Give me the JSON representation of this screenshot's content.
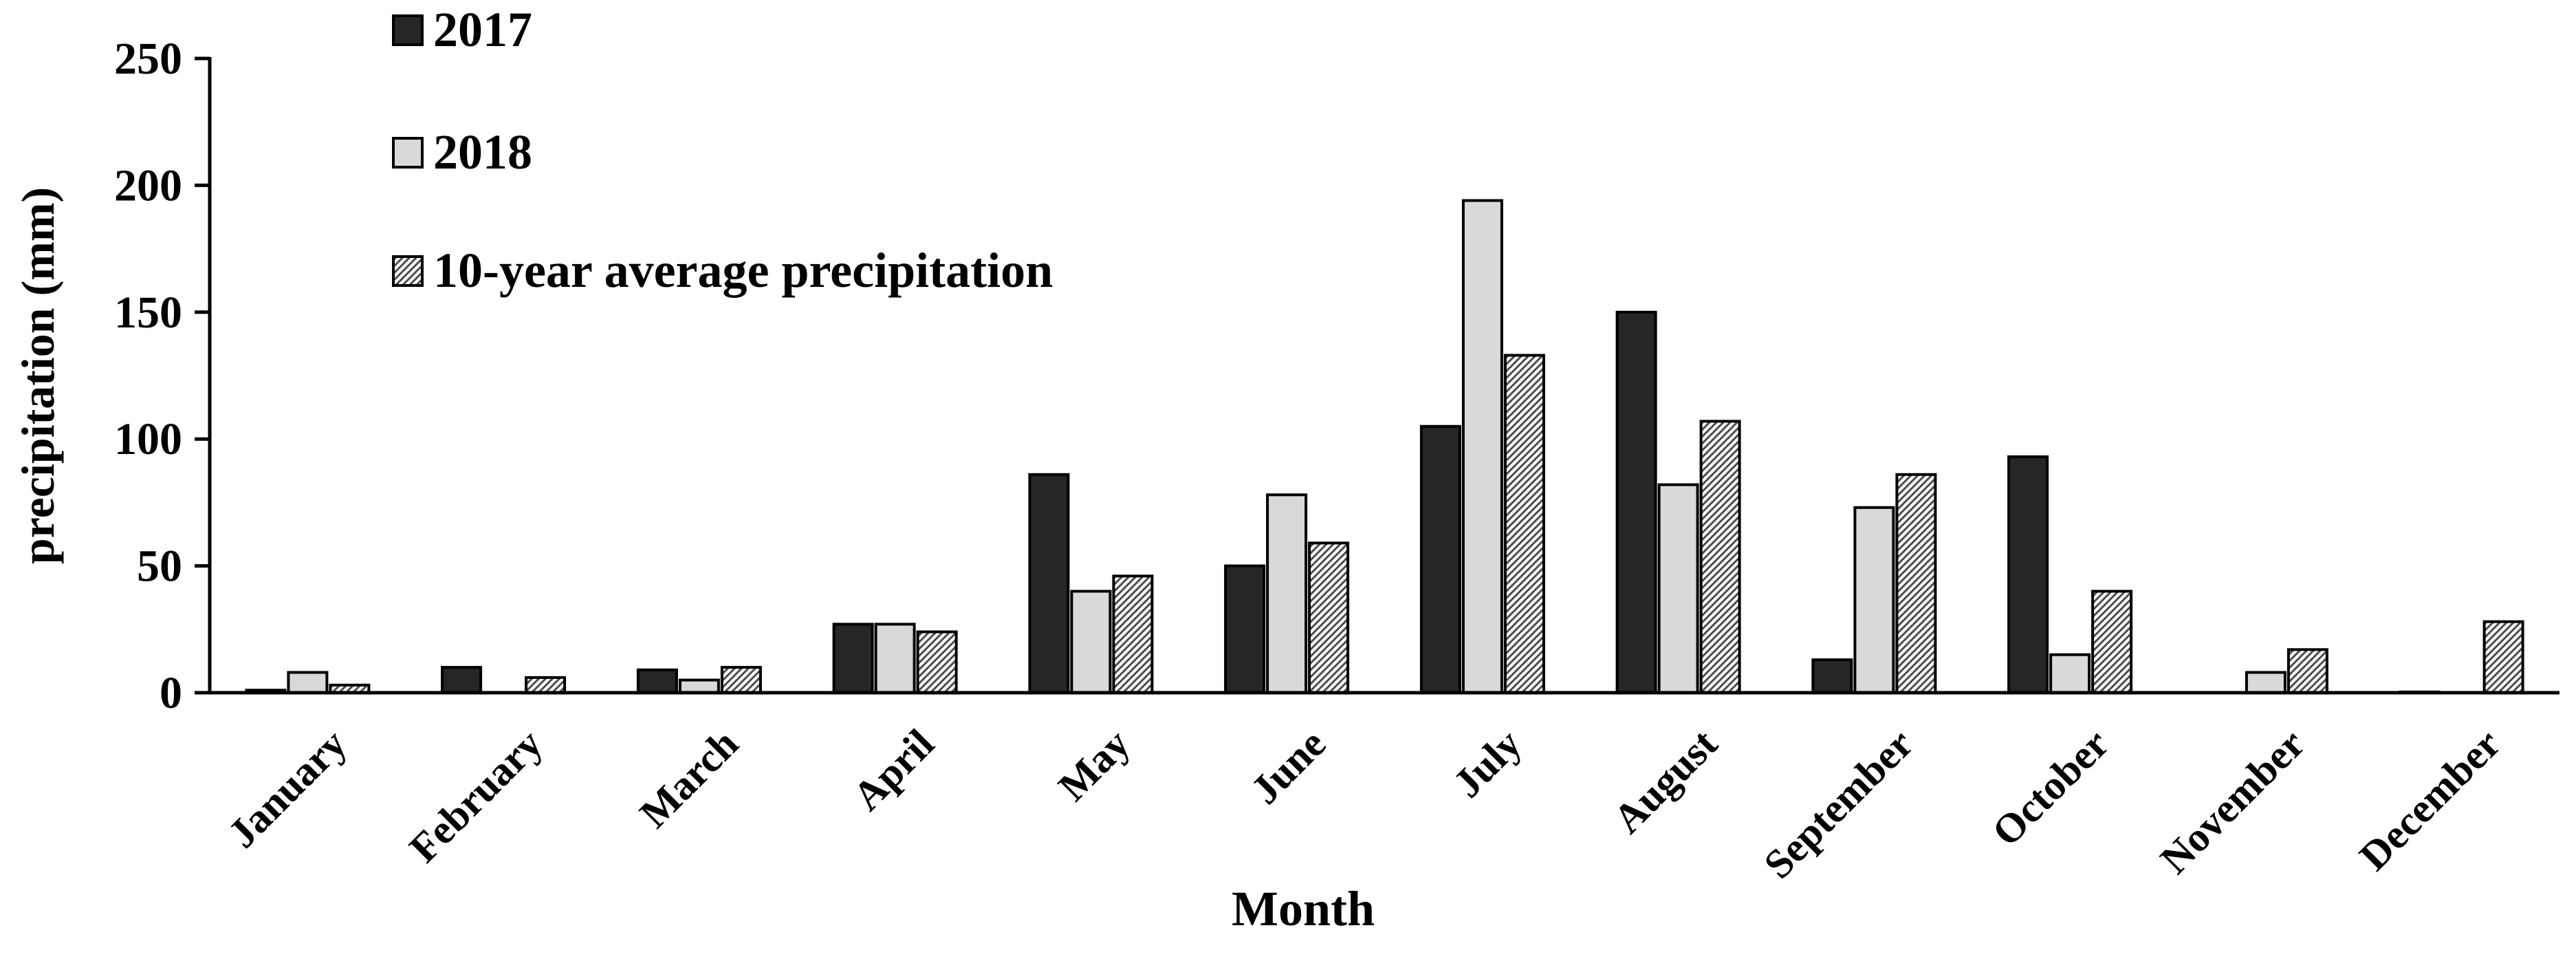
{
  "chart_data": {
    "type": "bar",
    "title": "",
    "xlabel": "Month",
    "ylabel": "precipitation (mm)",
    "ylim": [
      0,
      250
    ],
    "yticks": [
      0,
      50,
      100,
      150,
      200,
      250
    ],
    "categories": [
      "January",
      "February",
      "March",
      "April",
      "May",
      "June",
      "July",
      "August",
      "September",
      "October",
      "November",
      "December"
    ],
    "series": [
      {
        "name": "2017",
        "pattern": "solid-dark",
        "color": "#262626",
        "values": [
          1,
          10,
          9,
          27,
          86,
          50,
          105,
          150,
          13,
          93,
          0,
          0.3
        ]
      },
      {
        "name": "2018",
        "pattern": "solid-light",
        "color": "#d9d9d9",
        "values": [
          8,
          0,
          5,
          27,
          40,
          78,
          194,
          82,
          73,
          15,
          8,
          0
        ]
      },
      {
        "name": "10-year average precipitation",
        "pattern": "hatched",
        "color": "#bfbfbf",
        "values": [
          3,
          6,
          10,
          24,
          46,
          59,
          133,
          107,
          86,
          40,
          17,
          28
        ]
      }
    ],
    "legend_position": "top-left",
    "grid": false
  }
}
